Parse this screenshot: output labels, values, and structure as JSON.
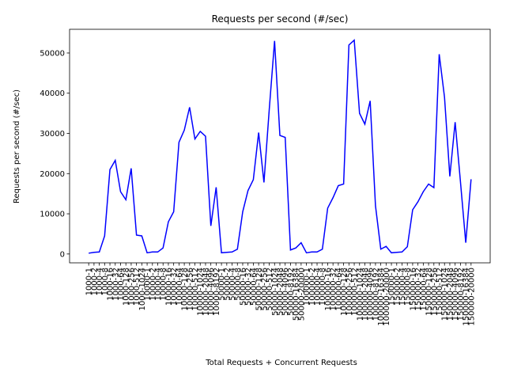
{
  "chart_data": {
    "type": "line",
    "title": "Requests per second (#/sec)",
    "x_label": "Total Requests + Concurrent Requests",
    "y_label": "Requests per second (#/sec)",
    "categories": [
      "1000-1",
      "1000-2",
      "1000-4",
      "1000-8",
      "1000-16",
      "1000-32",
      "1000-64",
      "1000-128",
      "1000-256",
      "1000-512",
      "1000-1024",
      "10000-1",
      "10000-2",
      "10000-4",
      "10000-8",
      "10000-16",
      "10000-32",
      "10000-64",
      "10000-128",
      "10000-256",
      "10000-512",
      "10000-1024",
      "10000-2048",
      "10000-4096",
      "10000-8192",
      "50000-1",
      "50000-2",
      "50000-4",
      "50000-8",
      "50000-16",
      "50000-32",
      "50000-64",
      "50000-128",
      "50000-256",
      "50000-512",
      "50000-1024",
      "50000-2048",
      "50000-4096",
      "50000-8192",
      "50000-16384",
      "50000-20000",
      "100000-1",
      "100000-2",
      "100000-4",
      "100000-8",
      "100000-16",
      "100000-32",
      "100000-64",
      "100000-128",
      "100000-256",
      "100000-512",
      "100000-1024",
      "100000-2048",
      "100000-4096",
      "100000-8192",
      "100000-16384",
      "100000-20000",
      "150000-1",
      "150000-2",
      "150000-4",
      "150000-8",
      "150000-16",
      "150000-32",
      "150000-64",
      "150000-128",
      "150000-256",
      "150000-512",
      "150000-1024",
      "150000-2048",
      "150000-4096",
      "150000-8192",
      "150000-16384",
      "150000-20000"
    ],
    "series": [
      {
        "name": "Requests per second",
        "color": "#0000ff",
        "values": [
          200,
          400,
          500,
          4500,
          21000,
          23300,
          15500,
          13500,
          21300,
          4700,
          4500,
          300,
          500,
          500,
          1500,
          8000,
          10500,
          27800,
          30800,
          36500,
          28600,
          30500,
          29300,
          7000,
          16600,
          300,
          400,
          500,
          1200,
          10500,
          15800,
          18500,
          30200,
          17800,
          36000,
          53000,
          29500,
          29000,
          1000,
          1500,
          2800,
          300,
          500,
          500,
          1200,
          11400,
          14000,
          17000,
          17400,
          52000,
          53200,
          35000,
          32300,
          38100,
          12000,
          1200,
          1900,
          300,
          400,
          500,
          1800,
          11000,
          13000,
          15500,
          17400,
          16500,
          49700,
          39000,
          19300,
          32800,
          18000,
          2800,
          18600
        ]
      }
    ],
    "ylim": [
      -2200,
      55900
    ],
    "yticks": [
      0,
      10000,
      20000,
      30000,
      40000,
      50000
    ],
    "grid": false
  }
}
